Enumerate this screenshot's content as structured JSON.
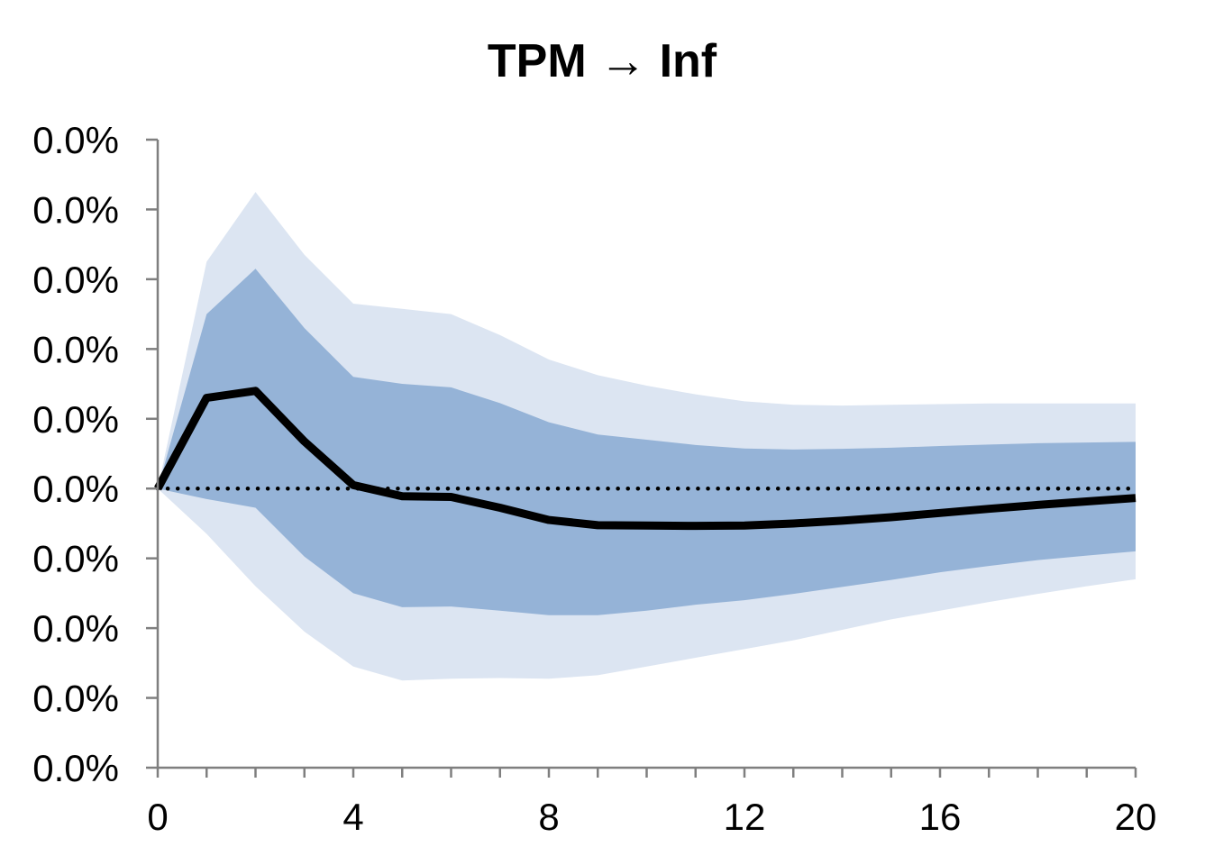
{
  "chart_data": {
    "type": "area",
    "title": "TPM → Inf",
    "xlabel": "",
    "ylabel": "",
    "x": [
      0,
      1,
      2,
      3,
      4,
      5,
      6,
      7,
      8,
      9,
      10,
      11,
      12,
      13,
      14,
      15,
      16,
      17,
      18,
      19,
      20
    ],
    "xlim": [
      0,
      20
    ],
    "x_tick_values": [
      0,
      4,
      8,
      12,
      16,
      20
    ],
    "x_tick_labels": [
      "0",
      "4",
      "8",
      "12",
      "16",
      "20"
    ],
    "ylim": [
      -8,
      10
    ],
    "y_tick_values": [
      10,
      8,
      6,
      4,
      2,
      0,
      -2,
      -4,
      -6,
      -8
    ],
    "y_tick_labels": [
      "0.0%",
      "0.0%",
      "0.0%",
      "0.0%",
      "0.0%",
      "0.0%",
      "0.0%",
      "0.0%",
      "0.0%",
      "0.0%"
    ],
    "grid": false,
    "bands": [
      {
        "role": "outer",
        "color": "#dce5f2",
        "upper": [
          0,
          6.5,
          8.5,
          6.7,
          5.3,
          5.15,
          5.0,
          4.4,
          3.7,
          3.25,
          2.95,
          2.7,
          2.5,
          2.4,
          2.38,
          2.4,
          2.42,
          2.44,
          2.44,
          2.44,
          2.44
        ],
        "lower": [
          0,
          -1.3,
          -2.8,
          -4.1,
          -5.1,
          -5.5,
          -5.45,
          -5.43,
          -5.45,
          -5.35,
          -5.1,
          -4.85,
          -4.6,
          -4.35,
          -4.05,
          -3.75,
          -3.5,
          -3.25,
          -3.02,
          -2.8,
          -2.6
        ]
      },
      {
        "role": "inner",
        "color": "#95b3d7",
        "upper": [
          0,
          5.0,
          6.3,
          4.6,
          3.2,
          3.0,
          2.9,
          2.45,
          1.9,
          1.55,
          1.4,
          1.25,
          1.15,
          1.12,
          1.14,
          1.17,
          1.22,
          1.26,
          1.3,
          1.32,
          1.34
        ],
        "lower": [
          0,
          -0.3,
          -0.55,
          -1.95,
          -3.0,
          -3.4,
          -3.38,
          -3.5,
          -3.63,
          -3.63,
          -3.5,
          -3.33,
          -3.2,
          -3.02,
          -2.82,
          -2.62,
          -2.4,
          -2.22,
          -2.05,
          -1.92,
          -1.8
        ]
      }
    ],
    "series": [
      {
        "color": "#000000",
        "y": [
          0,
          2.6,
          2.8,
          1.35,
          0.1,
          -0.22,
          -0.24,
          -0.55,
          -0.9,
          -1.05,
          -1.06,
          -1.07,
          -1.06,
          -1.0,
          -0.92,
          -0.82,
          -0.7,
          -0.58,
          -0.47,
          -0.37,
          -0.27
        ]
      }
    ],
    "reference_line": {
      "y": 0,
      "style": "dotted",
      "color": "#000000"
    },
    "axis_color": "#7f7f7f"
  }
}
